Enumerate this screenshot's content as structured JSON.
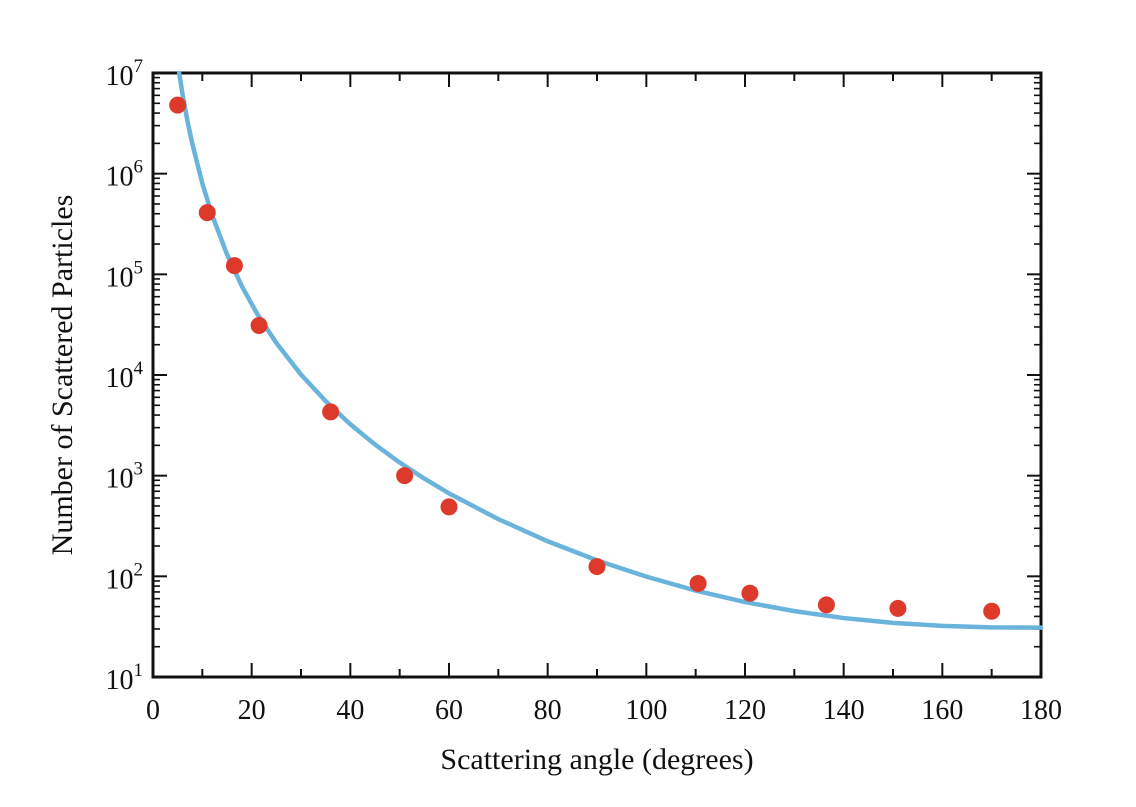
{
  "chart_data": {
    "type": "scatter",
    "title": "",
    "xlabel": "Scattering angle (degrees)",
    "ylabel": "Number  of Scattered Particles",
    "xlim": [
      0,
      180
    ],
    "ylim": [
      10,
      10000000
    ],
    "y_scale": "log",
    "grid": false,
    "legend": "none",
    "x_ticks": [
      0,
      20,
      40,
      60,
      80,
      100,
      120,
      140,
      160,
      180
    ],
    "x_tick_labels": [
      "0",
      "20",
      "40",
      "60",
      "80",
      "100",
      "120",
      "140",
      "160",
      "180"
    ],
    "y_ticks": [
      10,
      100,
      1000,
      10000,
      100000,
      1000000,
      10000000
    ],
    "y_tick_labels": [
      {
        "base": "10",
        "exp": "1"
      },
      {
        "base": "10",
        "exp": "2"
      },
      {
        "base": "10",
        "exp": "3"
      },
      {
        "base": "10",
        "exp": "4"
      },
      {
        "base": "10",
        "exp": "5"
      },
      {
        "base": "10",
        "exp": "6"
      },
      {
        "base": "10",
        "exp": "7"
      }
    ],
    "series": [
      {
        "kind": "points",
        "color": "#dd3a2c",
        "x": [
          5,
          11,
          16.5,
          21.5,
          36,
          51,
          60,
          90,
          110.5,
          121,
          136.5,
          151,
          170
        ],
        "y": [
          4800000,
          410000,
          122000,
          31000,
          4300,
          1000,
          490,
          125,
          85,
          68,
          52,
          48,
          45
        ]
      },
      {
        "kind": "curve",
        "color": "#6ab4dc",
        "x": [
          5.3,
          6,
          7,
          8,
          10,
          12,
          15,
          18,
          21,
          25,
          30,
          35,
          40,
          45,
          50,
          55,
          60,
          70,
          80,
          90,
          100,
          110,
          120,
          130,
          140,
          150,
          160,
          170,
          180
        ],
        "y": [
          10000000,
          6100000,
          3300000,
          1950000,
          800000,
          386000,
          158000,
          76500,
          41400,
          20800,
          10100,
          5500,
          3240,
          2040,
          1350,
          935,
          667,
          370,
          223,
          144,
          99.3,
          72.2,
          55.5,
          45.1,
          38.5,
          34.5,
          32.2,
          31.1,
          30.9
        ]
      }
    ]
  }
}
